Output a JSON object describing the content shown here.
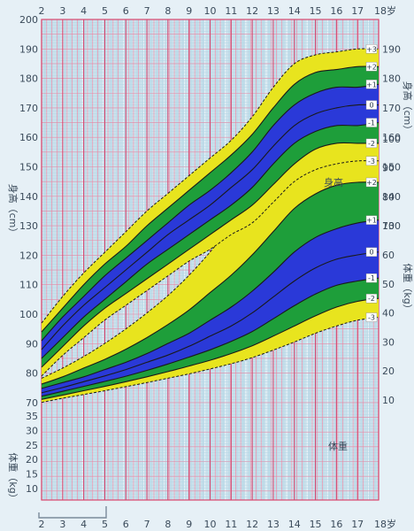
{
  "chart_data": [
    {
      "type": "area",
      "chart": "height",
      "title": "",
      "xlabel": "",
      "x_unit": "岁",
      "ylabel": "身高（cm）",
      "label": "身高",
      "xlim": [
        2,
        18
      ],
      "ylim": [
        70,
        200
      ],
      "x_ticks": [
        2,
        3,
        4,
        5,
        6,
        7,
        8,
        9,
        10,
        11,
        12,
        13,
        14,
        15,
        16,
        17,
        18
      ],
      "left_ticks": [
        70,
        80,
        90,
        100,
        110,
        120,
        130,
        140,
        150,
        160,
        170,
        180,
        190,
        200
      ],
      "right_ticks": [
        130,
        140,
        150,
        160,
        170,
        180,
        190
      ],
      "x": [
        2,
        3,
        4,
        5,
        6,
        7,
        8,
        9,
        10,
        11,
        12,
        13,
        14,
        15,
        16,
        17,
        18
      ],
      "series": [
        {
          "name": "+3",
          "values": [
            97,
            106,
            114,
            121,
            128,
            135,
            141,
            147,
            153,
            159,
            167,
            177,
            185,
            188,
            189,
            190,
            190
          ]
        },
        {
          "name": "+2",
          "values": [
            94,
            102,
            110,
            117,
            123,
            130,
            136,
            142,
            148,
            154,
            161,
            170,
            178,
            182,
            183,
            184,
            184
          ]
        },
        {
          "name": "+1",
          "values": [
            91,
            99,
            106,
            113,
            119,
            125,
            131,
            137,
            142,
            148,
            155,
            164,
            171,
            175,
            177,
            177,
            178
          ]
        },
        {
          "name": "0",
          "values": [
            88,
            96,
            103,
            109,
            115,
            121,
            127,
            132,
            137,
            143,
            149,
            157,
            164,
            168,
            170,
            171,
            171
          ]
        },
        {
          "name": "-1",
          "values": [
            85,
            92,
            99,
            105,
            111,
            117,
            122,
            127,
            132,
            137,
            143,
            151,
            158,
            162,
            164,
            164,
            165
          ]
        },
        {
          "name": "-2",
          "values": [
            82,
            89,
            96,
            102,
            107,
            112,
            117,
            122,
            127,
            132,
            137,
            144,
            151,
            156,
            158,
            158,
            158
          ]
        },
        {
          "name": "-3",
          "values": [
            79,
            86,
            92,
            98,
            103,
            108,
            113,
            118,
            122,
            127,
            131,
            138,
            145,
            149,
            151,
            152,
            152
          ]
        }
      ],
      "band_colors": [
        "#e8e41e",
        "#1e9e3a",
        "#2a39d8",
        "#2a39d8",
        "#1e9e3a",
        "#e8e41e"
      ],
      "grid": true
    },
    {
      "type": "area",
      "chart": "weight",
      "title": "",
      "xlabel": "",
      "x_unit": "岁",
      "ylabel": "体重（kg）",
      "label": "体重",
      "xlim": [
        2,
        18
      ],
      "ylim": [
        5,
        105
      ],
      "left_ticks": [
        10,
        15,
        20,
        25,
        30,
        35
      ],
      "right_ticks": [
        10,
        20,
        30,
        40,
        50,
        60,
        70,
        80,
        90,
        100
      ],
      "x": [
        2,
        3,
        4,
        5,
        6,
        7,
        8,
        9,
        10,
        11,
        12,
        13,
        14,
        15,
        16,
        17,
        18
      ],
      "series": [
        {
          "name": "+3",
          "values": [
            17.5,
            21,
            25,
            29.5,
            34.5,
            40,
            46,
            53,
            61,
            70,
            80,
            90,
            98,
            100,
            101,
            101,
            101
          ]
        },
        {
          "name": "+2",
          "values": [
            15.5,
            18,
            21,
            24,
            27.5,
            31.5,
            36,
            41,
            47,
            53,
            60,
            68,
            76,
            81,
            84,
            85,
            85
          ]
        },
        {
          "name": "+1",
          "values": [
            14,
            16,
            18,
            20.5,
            23,
            26,
            29.5,
            33,
            37.5,
            42,
            47.5,
            54,
            61,
            66,
            69,
            71,
            72
          ]
        },
        {
          "name": "0",
          "values": [
            12.5,
            14.3,
            16.3,
            18.3,
            20.5,
            23,
            25.5,
            28.5,
            32,
            35.5,
            40,
            45.5,
            51,
            55.5,
            58.5,
            60,
            61
          ]
        },
        {
          "name": "-1",
          "values": [
            11.3,
            13,
            14.7,
            16.4,
            18.2,
            20.2,
            22.4,
            24.8,
            27.3,
            30.2,
            33.6,
            38,
            42.5,
            46.5,
            49.5,
            51,
            52
          ]
        },
        {
          "name": "-2",
          "values": [
            10.2,
            11.7,
            13.2,
            14.7,
            16.3,
            18,
            19.8,
            21.7,
            23.7,
            26,
            28.7,
            32,
            35.5,
            39,
            42,
            44,
            45
          ]
        },
        {
          "name": "-3",
          "values": [
            9.2,
            10.6,
            11.9,
            13.2,
            14.6,
            16,
            17.5,
            19,
            20.7,
            22.5,
            24.6,
            27.2,
            30,
            33,
            35.5,
            37.5,
            38.5
          ]
        }
      ],
      "band_colors": [
        "#e8e41e",
        "#1e9e3a",
        "#2a39d8",
        "#2a39d8",
        "#1e9e3a",
        "#e8e41e"
      ],
      "grid": true
    }
  ]
}
